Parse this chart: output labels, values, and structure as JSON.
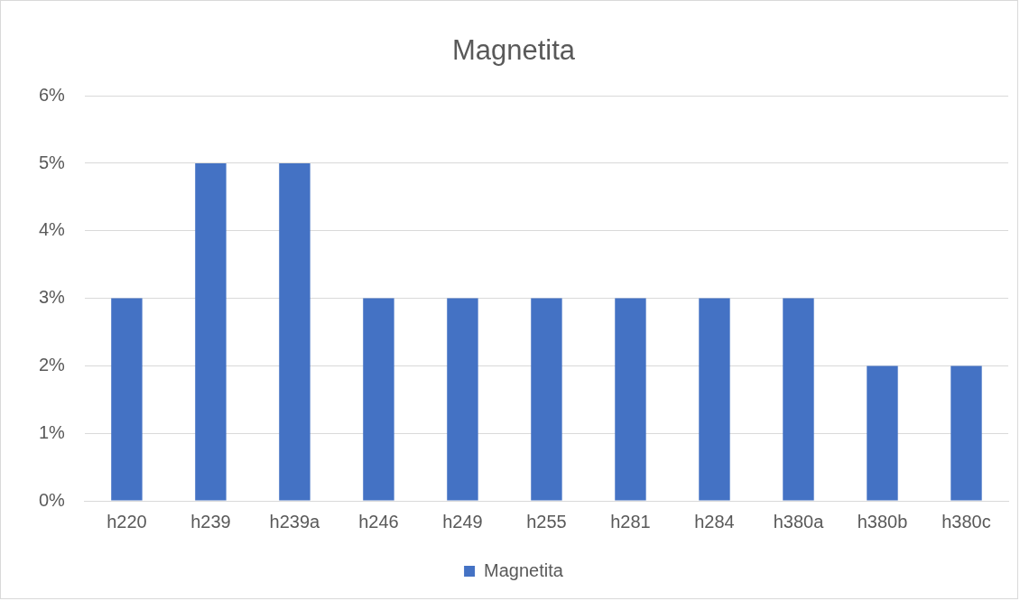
{
  "chart_data": {
    "type": "bar",
    "title": "Magnetita",
    "categories": [
      "h220",
      "h239",
      "h239a",
      "h246",
      "h249",
      "h255",
      "h281",
      "h284",
      "h380a",
      "h380b",
      "h380c"
    ],
    "series": [
      {
        "name": "Magnetita",
        "color": "#4472c4",
        "values": [
          3,
          5,
          5,
          3,
          3,
          3,
          3,
          3,
          3,
          2,
          2
        ]
      }
    ],
    "ylim": [
      0,
      6
    ],
    "yticks": [
      {
        "value": 0,
        "label": "0%"
      },
      {
        "value": 1,
        "label": "1%"
      },
      {
        "value": 2,
        "label": "2%"
      },
      {
        "value": 3,
        "label": "3%"
      },
      {
        "value": 4,
        "label": "4%"
      },
      {
        "value": 5,
        "label": "5%"
      },
      {
        "value": 6,
        "label": "6%"
      }
    ],
    "grid": "y",
    "legend": "bottom"
  }
}
